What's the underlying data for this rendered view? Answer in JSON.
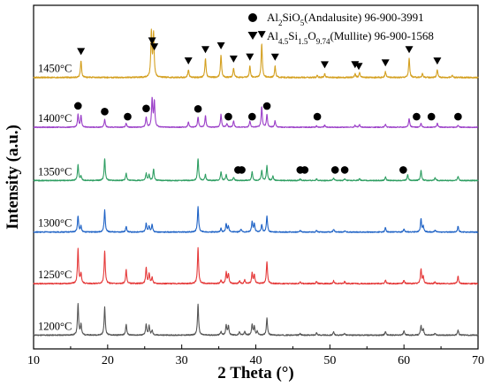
{
  "chart_data": {
    "type": "line",
    "xlabel": "2 Theta (°)",
    "ylabel": "Intensity (a.u.)",
    "xlim": [
      10,
      70
    ],
    "x_ticks": [
      "10",
      "20",
      "30",
      "40",
      "50",
      "60",
      "70"
    ],
    "grid": false,
    "legend_placement": "top-right",
    "legend": [
      {
        "marker": "circle",
        "parts": [
          [
            "Al",
            ""
          ],
          [
            "2",
            "sub"
          ],
          [
            "SiO",
            ""
          ],
          [
            "5",
            "sub"
          ],
          [
            "(Andalusite) 96-900-3991",
            ""
          ]
        ]
      },
      {
        "marker": "triangle-down",
        "parts": [
          [
            "Al",
            ""
          ],
          [
            "4.5",
            "sub"
          ],
          [
            "Si",
            ""
          ],
          [
            "1.5",
            "sub"
          ],
          [
            "O",
            ""
          ],
          [
            "9.74",
            "sub"
          ],
          [
            "(Mullite) 96-900-1568",
            ""
          ]
        ]
      }
    ],
    "series": [
      {
        "name": "1200°C",
        "color": "#555555",
        "baseline": 0.04,
        "scale": 0.09,
        "peaks": [
          [
            16.0,
            1.0
          ],
          [
            16.4,
            0.35
          ],
          [
            19.6,
            0.9
          ],
          [
            22.5,
            0.35
          ],
          [
            25.2,
            0.35
          ],
          [
            25.6,
            0.3
          ],
          [
            26.0,
            0.15
          ],
          [
            32.2,
            1.0
          ],
          [
            35.3,
            0.12
          ],
          [
            36.0,
            0.32
          ],
          [
            36.3,
            0.3
          ],
          [
            37.8,
            0.1
          ],
          [
            38.5,
            0.12
          ],
          [
            39.5,
            0.35
          ],
          [
            39.8,
            0.28
          ],
          [
            40.2,
            0.12
          ],
          [
            41.5,
            0.55
          ],
          [
            46.0,
            0.05
          ],
          [
            48.2,
            0.08
          ],
          [
            50.5,
            0.1
          ],
          [
            52.0,
            0.06
          ],
          [
            57.5,
            0.12
          ],
          [
            60.0,
            0.14
          ],
          [
            62.3,
            0.3
          ],
          [
            62.6,
            0.2
          ],
          [
            64.2,
            0.06
          ],
          [
            67.3,
            0.17
          ]
        ]
      },
      {
        "name": "1250°C",
        "color": "#e53a3a",
        "baseline": 0.19,
        "scale": 0.1,
        "peaks": [
          [
            16.0,
            1.0
          ],
          [
            16.4,
            0.3
          ],
          [
            19.6,
            0.95
          ],
          [
            22.5,
            0.4
          ],
          [
            25.2,
            0.45
          ],
          [
            25.6,
            0.3
          ],
          [
            26.0,
            0.18
          ],
          [
            32.2,
            1.05
          ],
          [
            35.3,
            0.1
          ],
          [
            36.0,
            0.32
          ],
          [
            36.3,
            0.28
          ],
          [
            37.8,
            0.08
          ],
          [
            38.5,
            0.1
          ],
          [
            39.5,
            0.3
          ],
          [
            39.8,
            0.25
          ],
          [
            41.5,
            0.65
          ],
          [
            46.0,
            0.05
          ],
          [
            48.2,
            0.06
          ],
          [
            50.5,
            0.08
          ],
          [
            52.0,
            0.06
          ],
          [
            57.5,
            0.1
          ],
          [
            60.0,
            0.1
          ],
          [
            62.3,
            0.42
          ],
          [
            62.6,
            0.2
          ],
          [
            64.2,
            0.05
          ],
          [
            67.3,
            0.22
          ]
        ]
      },
      {
        "name": "1300°C",
        "color": "#1f63c6",
        "baseline": 0.34,
        "scale": 0.085,
        "peaks": [
          [
            16.0,
            0.55
          ],
          [
            16.4,
            0.2
          ],
          [
            19.6,
            0.75
          ],
          [
            22.5,
            0.2
          ],
          [
            25.2,
            0.3
          ],
          [
            25.6,
            0.2
          ],
          [
            26.0,
            0.25
          ],
          [
            32.2,
            0.88
          ],
          [
            35.3,
            0.12
          ],
          [
            36.0,
            0.28
          ],
          [
            36.3,
            0.2
          ],
          [
            38.0,
            0.1
          ],
          [
            39.5,
            0.35
          ],
          [
            39.8,
            0.28
          ],
          [
            40.8,
            0.25
          ],
          [
            41.5,
            0.55
          ],
          [
            46.0,
            0.05
          ],
          [
            48.2,
            0.06
          ],
          [
            50.5,
            0.1
          ],
          [
            52.0,
            0.05
          ],
          [
            57.5,
            0.15
          ],
          [
            60.0,
            0.12
          ],
          [
            62.3,
            0.45
          ],
          [
            62.6,
            0.2
          ],
          [
            64.2,
            0.06
          ],
          [
            67.3,
            0.2
          ]
        ]
      },
      {
        "name": "1350°C",
        "color": "#2e9e62",
        "baseline": 0.49,
        "scale": 0.085,
        "peaks": [
          [
            16.0,
            0.55
          ],
          [
            16.4,
            0.15
          ],
          [
            19.6,
            0.75
          ],
          [
            22.5,
            0.25
          ],
          [
            25.2,
            0.25
          ],
          [
            25.6,
            0.2
          ],
          [
            26.2,
            0.4
          ],
          [
            32.2,
            0.75
          ],
          [
            33.2,
            0.2
          ],
          [
            35.3,
            0.3
          ],
          [
            36.0,
            0.2
          ],
          [
            37.0,
            0.1
          ],
          [
            39.5,
            0.3
          ],
          [
            40.8,
            0.35
          ],
          [
            41.5,
            0.5
          ],
          [
            42.3,
            0.15
          ],
          [
            46.0,
            0.05
          ],
          [
            48.2,
            0.06
          ],
          [
            50.5,
            0.08
          ],
          [
            52.0,
            0.05
          ],
          [
            54.0,
            0.06
          ],
          [
            57.5,
            0.12
          ],
          [
            60.5,
            0.2
          ],
          [
            62.3,
            0.35
          ],
          [
            64.2,
            0.1
          ],
          [
            67.3,
            0.15
          ]
        ]
      },
      {
        "name": "1400°C",
        "color": "#9b3fc8",
        "baseline": 0.645,
        "scale": 0.075,
        "peaks": [
          [
            16.0,
            0.5
          ],
          [
            16.4,
            0.45
          ],
          [
            19.6,
            0.3
          ],
          [
            22.5,
            0.15
          ],
          [
            25.2,
            0.4
          ],
          [
            26.0,
            1.1
          ],
          [
            26.3,
            1.0
          ],
          [
            30.9,
            0.2
          ],
          [
            32.2,
            0.4
          ],
          [
            33.2,
            0.45
          ],
          [
            35.3,
            0.5
          ],
          [
            36.1,
            0.15
          ],
          [
            37.0,
            0.25
          ],
          [
            39.2,
            0.25
          ],
          [
            40.8,
            0.8
          ],
          [
            41.5,
            0.5
          ],
          [
            42.6,
            0.25
          ],
          [
            48.2,
            0.05
          ],
          [
            49.3,
            0.08
          ],
          [
            53.4,
            0.08
          ],
          [
            54.0,
            0.1
          ],
          [
            57.5,
            0.12
          ],
          [
            60.7,
            0.35
          ],
          [
            62.3,
            0.15
          ],
          [
            64.5,
            0.15
          ],
          [
            67.3,
            0.08
          ]
        ]
      },
      {
        "name": "1450°C",
        "color": "#d4a020",
        "baseline": 0.79,
        "scale": 0.11,
        "peaks": [
          [
            16.4,
            0.45
          ],
          [
            25.9,
            1.2
          ],
          [
            26.2,
            1.15
          ],
          [
            30.9,
            0.2
          ],
          [
            33.2,
            0.5
          ],
          [
            35.3,
            0.6
          ],
          [
            37.0,
            0.25
          ],
          [
            39.2,
            0.3
          ],
          [
            40.8,
            0.9
          ],
          [
            42.6,
            0.3
          ],
          [
            48.3,
            0.06
          ],
          [
            49.3,
            0.1
          ],
          [
            53.4,
            0.1
          ],
          [
            54.0,
            0.12
          ],
          [
            57.5,
            0.15
          ],
          [
            60.7,
            0.5
          ],
          [
            62.5,
            0.1
          ],
          [
            64.5,
            0.2
          ],
          [
            66.5,
            0.06
          ]
        ]
      }
    ],
    "andalusite_markers": {
      "1400°C": [
        16.0,
        19.6,
        22.7,
        25.2,
        32.2,
        36.3,
        39.5,
        41.5,
        48.3,
        61.7,
        63.7,
        67.3
      ],
      "1350°C": [
        37.6,
        38.1,
        46.0,
        46.6,
        50.7,
        52.0,
        59.9
      ]
    },
    "mullite_markers": {
      "1450°C": [
        16.4,
        26.0,
        26.3,
        30.9,
        33.2,
        35.3,
        37.0,
        39.2,
        40.8,
        42.6,
        49.3,
        53.4,
        53.9,
        57.5,
        60.7,
        64.5
      ]
    }
  }
}
